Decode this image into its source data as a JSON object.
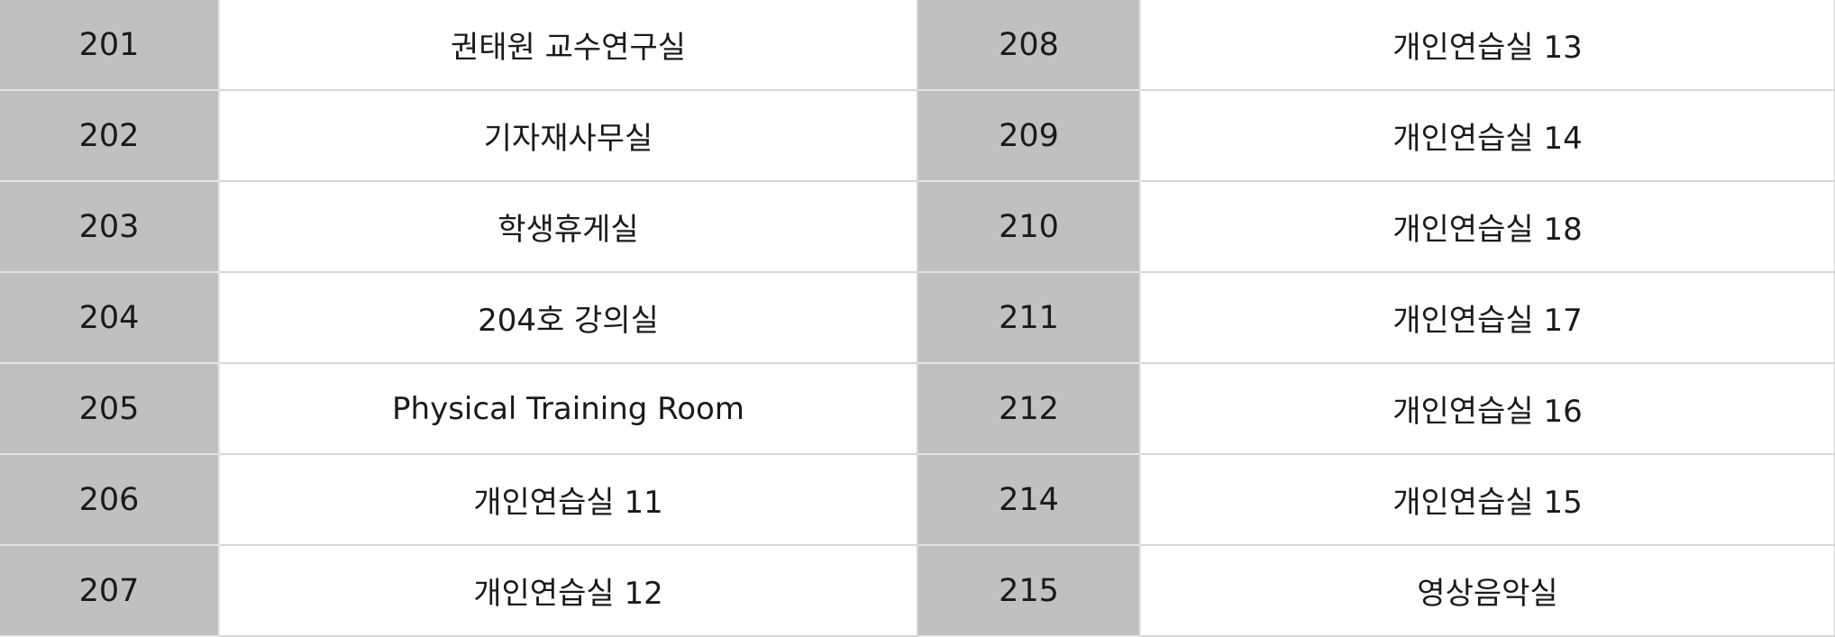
{
  "rows": [
    {
      "left_num": "201",
      "left_name": "권태원 교수연구실",
      "right_num": "208",
      "right_name": "개인연습실 13"
    },
    {
      "left_num": "202",
      "left_name": "기자재사무실",
      "right_num": "209",
      "right_name": "개인연습실 14"
    },
    {
      "left_num": "203",
      "left_name": "학생휴게실",
      "right_num": "210",
      "right_name": "개인연습실 18"
    },
    {
      "left_num": "204",
      "left_name": "204호 강의실",
      "right_num": "211",
      "right_name": "개인연습실 17"
    },
    {
      "left_num": "205",
      "left_name": "Physical Training Room",
      "right_num": "212",
      "right_name": "개인연습실 16"
    },
    {
      "left_num": "206",
      "left_name": "개인연습실 11",
      "right_num": "214",
      "right_name": "개인연습실 15"
    },
    {
      "left_num": "207",
      "left_name": "개인연습실 12",
      "right_num": "215",
      "right_name": "영상음악실"
    }
  ],
  "colors": {
    "number_cell_bg": "#c0c0c0",
    "name_cell_bg": "#ffffff",
    "border": "#d6d6d6",
    "text": "#1a1a1a"
  }
}
